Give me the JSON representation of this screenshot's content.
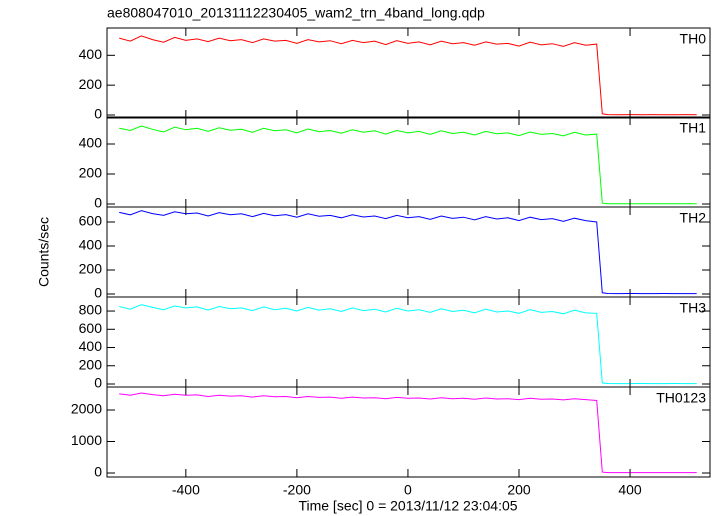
{
  "title": "ae808047010_20131112230405_wam2_trn_4band_long.qdp",
  "x_label": "Time [sec] 0 = 2013/11/12 23:04:05",
  "y_label": "Counts/sec",
  "chart_data": [
    {
      "type": "line",
      "label": "TH0",
      "color": "#ff0000",
      "xlim": [
        -542,
        544
      ],
      "ylim": [
        -20,
        583
      ],
      "yticks": [
        0,
        200,
        400
      ],
      "xticks": [
        -400,
        -200,
        0,
        200,
        400
      ],
      "x": [
        -520,
        -500,
        -480,
        -460,
        -440,
        -420,
        -400,
        -380,
        -360,
        -340,
        -320,
        -300,
        -280,
        -260,
        -240,
        -220,
        -200,
        -180,
        -160,
        -140,
        -120,
        -100,
        -80,
        -60,
        -40,
        -20,
        0,
        20,
        40,
        60,
        80,
        100,
        120,
        140,
        160,
        180,
        200,
        220,
        240,
        260,
        280,
        300,
        320,
        340,
        350,
        360,
        380,
        400,
        420,
        440,
        460,
        480,
        500,
        520
      ],
      "values": [
        515,
        495,
        530,
        505,
        488,
        520,
        500,
        510,
        492,
        515,
        498,
        505,
        485,
        510,
        495,
        500,
        480,
        505,
        490,
        498,
        478,
        500,
        485,
        495,
        472,
        498,
        480,
        490,
        470,
        495,
        478,
        485,
        468,
        490,
        475,
        480,
        462,
        488,
        470,
        478,
        460,
        485,
        468,
        475,
        8,
        3,
        2,
        3,
        2,
        3,
        2,
        2,
        3,
        2
      ]
    },
    {
      "type": "line",
      "label": "TH1",
      "color": "#00ff00",
      "xlim": [
        -542,
        544
      ],
      "ylim": [
        -20,
        580
      ],
      "yticks": [
        0,
        200,
        400
      ],
      "xticks": [
        -400,
        -200,
        0,
        200,
        400
      ],
      "x": [
        -520,
        -500,
        -480,
        -460,
        -440,
        -420,
        -400,
        -380,
        -360,
        -340,
        -320,
        -300,
        -280,
        -260,
        -240,
        -220,
        -200,
        -180,
        -160,
        -140,
        -120,
        -100,
        -80,
        -60,
        -40,
        -20,
        0,
        20,
        40,
        60,
        80,
        100,
        120,
        140,
        160,
        180,
        200,
        220,
        240,
        260,
        280,
        300,
        320,
        340,
        350,
        360,
        380,
        400,
        420,
        440,
        460,
        480,
        500,
        520
      ],
      "values": [
        505,
        490,
        520,
        498,
        480,
        512,
        495,
        505,
        485,
        508,
        492,
        498,
        478,
        505,
        488,
        495,
        475,
        500,
        482,
        490,
        472,
        495,
        478,
        488,
        466,
        490,
        474,
        484,
        464,
        488,
        470,
        478,
        460,
        484,
        468,
        474,
        456,
        480,
        464,
        470,
        454,
        478,
        460,
        466,
        6,
        2,
        2,
        2,
        2,
        2,
        1,
        2,
        2,
        2
      ]
    },
    {
      "type": "line",
      "label": "TH2",
      "color": "#0000ff",
      "xlim": [
        -542,
        544
      ],
      "ylim": [
        -25,
        725
      ],
      "yticks": [
        0,
        200,
        400,
        600
      ],
      "xticks": [
        -400,
        -200,
        0,
        200,
        400
      ],
      "x": [
        -520,
        -500,
        -480,
        -460,
        -440,
        -420,
        -400,
        -380,
        -360,
        -340,
        -320,
        -300,
        -280,
        -260,
        -240,
        -220,
        -200,
        -180,
        -160,
        -140,
        -120,
        -100,
        -80,
        -60,
        -40,
        -20,
        0,
        20,
        40,
        60,
        80,
        100,
        120,
        140,
        160,
        180,
        200,
        220,
        240,
        260,
        280,
        300,
        320,
        340,
        350,
        360,
        380,
        400,
        420,
        440,
        460,
        480,
        500,
        520
      ],
      "values": [
        680,
        660,
        695,
        670,
        655,
        685,
        668,
        675,
        650,
        678,
        660,
        668,
        645,
        672,
        652,
        662,
        640,
        668,
        648,
        655,
        635,
        660,
        642,
        650,
        628,
        655,
        636,
        645,
        622,
        650,
        630,
        640,
        618,
        645,
        625,
        635,
        612,
        640,
        620,
        628,
        606,
        632,
        612,
        600,
        10,
        4,
        3,
        4,
        3,
        3,
        4,
        3,
        3,
        3
      ]
    },
    {
      "type": "line",
      "label": "TH3",
      "color": "#00ffff",
      "xlim": [
        -542,
        544
      ],
      "ylim": [
        -33,
        954
      ],
      "yticks": [
        0,
        200,
        400,
        600,
        800
      ],
      "xticks": [
        -400,
        -200,
        0,
        200,
        400
      ],
      "x": [
        -520,
        -500,
        -480,
        -460,
        -440,
        -420,
        -400,
        -380,
        -360,
        -340,
        -320,
        -300,
        -280,
        -260,
        -240,
        -220,
        -200,
        -180,
        -160,
        -140,
        -120,
        -100,
        -80,
        -60,
        -40,
        -20,
        0,
        20,
        40,
        60,
        80,
        100,
        120,
        140,
        160,
        180,
        200,
        220,
        240,
        260,
        280,
        300,
        320,
        340,
        350,
        360,
        380,
        400,
        420,
        440,
        460,
        480,
        500,
        520
      ],
      "values": [
        850,
        820,
        870,
        840,
        815,
        855,
        835,
        845,
        810,
        850,
        825,
        835,
        805,
        845,
        815,
        830,
        800,
        840,
        810,
        825,
        795,
        835,
        805,
        820,
        790,
        830,
        800,
        815,
        785,
        825,
        795,
        808,
        780,
        820,
        790,
        800,
        775,
        815,
        785,
        795,
        770,
        810,
        780,
        775,
        12,
        5,
        4,
        4,
        5,
        4,
        4,
        5,
        4,
        4
      ]
    },
    {
      "type": "line",
      "label": "TH0123",
      "color": "#ff00ff",
      "xlim": [
        -542,
        544
      ],
      "ylim": [
        -127,
        2730
      ],
      "yticks": [
        0,
        1000,
        2000
      ],
      "xticks": [
        -400,
        -200,
        0,
        200,
        400
      ],
      "x": [
        -520,
        -500,
        -480,
        -460,
        -440,
        -420,
        -400,
        -380,
        -360,
        -340,
        -320,
        -300,
        -280,
        -260,
        -240,
        -220,
        -200,
        -180,
        -160,
        -140,
        -120,
        -100,
        -80,
        -60,
        -40,
        -20,
        0,
        20,
        40,
        60,
        80,
        100,
        120,
        140,
        160,
        180,
        200,
        220,
        240,
        260,
        280,
        300,
        320,
        340,
        350,
        360,
        380,
        400,
        420,
        440,
        460,
        480,
        500,
        520
      ],
      "values": [
        2510,
        2470,
        2540,
        2490,
        2450,
        2500,
        2470,
        2480,
        2430,
        2470,
        2440,
        2450,
        2410,
        2450,
        2420,
        2430,
        2390,
        2430,
        2400,
        2410,
        2370,
        2410,
        2380,
        2390,
        2360,
        2400,
        2370,
        2380,
        2350,
        2390,
        2360,
        2370,
        2340,
        2380,
        2350,
        2360,
        2330,
        2370,
        2340,
        2350,
        2320,
        2360,
        2330,
        2300,
        30,
        14,
        12,
        13,
        14,
        12,
        13,
        12,
        14,
        12
      ]
    }
  ]
}
